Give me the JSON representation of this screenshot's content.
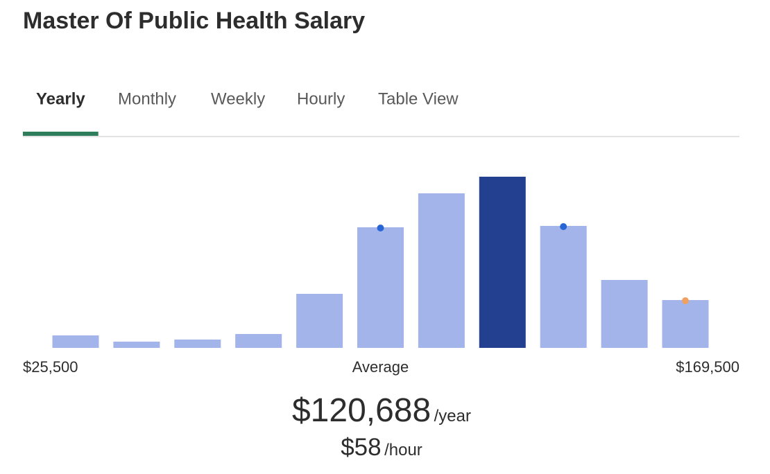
{
  "title": "Master Of Public Health Salary",
  "tabs": [
    "Yearly",
    "Monthly",
    "Weekly",
    "Hourly",
    "Table View"
  ],
  "active_tab": 0,
  "chart_data": {
    "type": "bar",
    "categories": [
      null,
      null,
      null,
      null,
      null,
      null,
      null,
      null,
      null,
      null,
      null
    ],
    "values": [
      18,
      9,
      12,
      20,
      78,
      174,
      223,
      247,
      176,
      98,
      69
    ],
    "color": "#a3b4ea",
    "highlight_color": "#233f8f",
    "highlight_index": 7,
    "ylim": [
      0,
      250
    ],
    "markers": [
      {
        "index": 5,
        "color": "#2866d6"
      },
      {
        "index": 8,
        "color": "#2866d6"
      },
      {
        "index": 10,
        "color": "#f0a060"
      }
    ],
    "min_label": "$25,500",
    "max_label": "$169,500",
    "average_label": "Average",
    "average_index": 5
  },
  "summary": {
    "yearly": "$120,688",
    "yearly_unit": "/year",
    "hourly": "$58",
    "hourly_unit": "/hour"
  }
}
